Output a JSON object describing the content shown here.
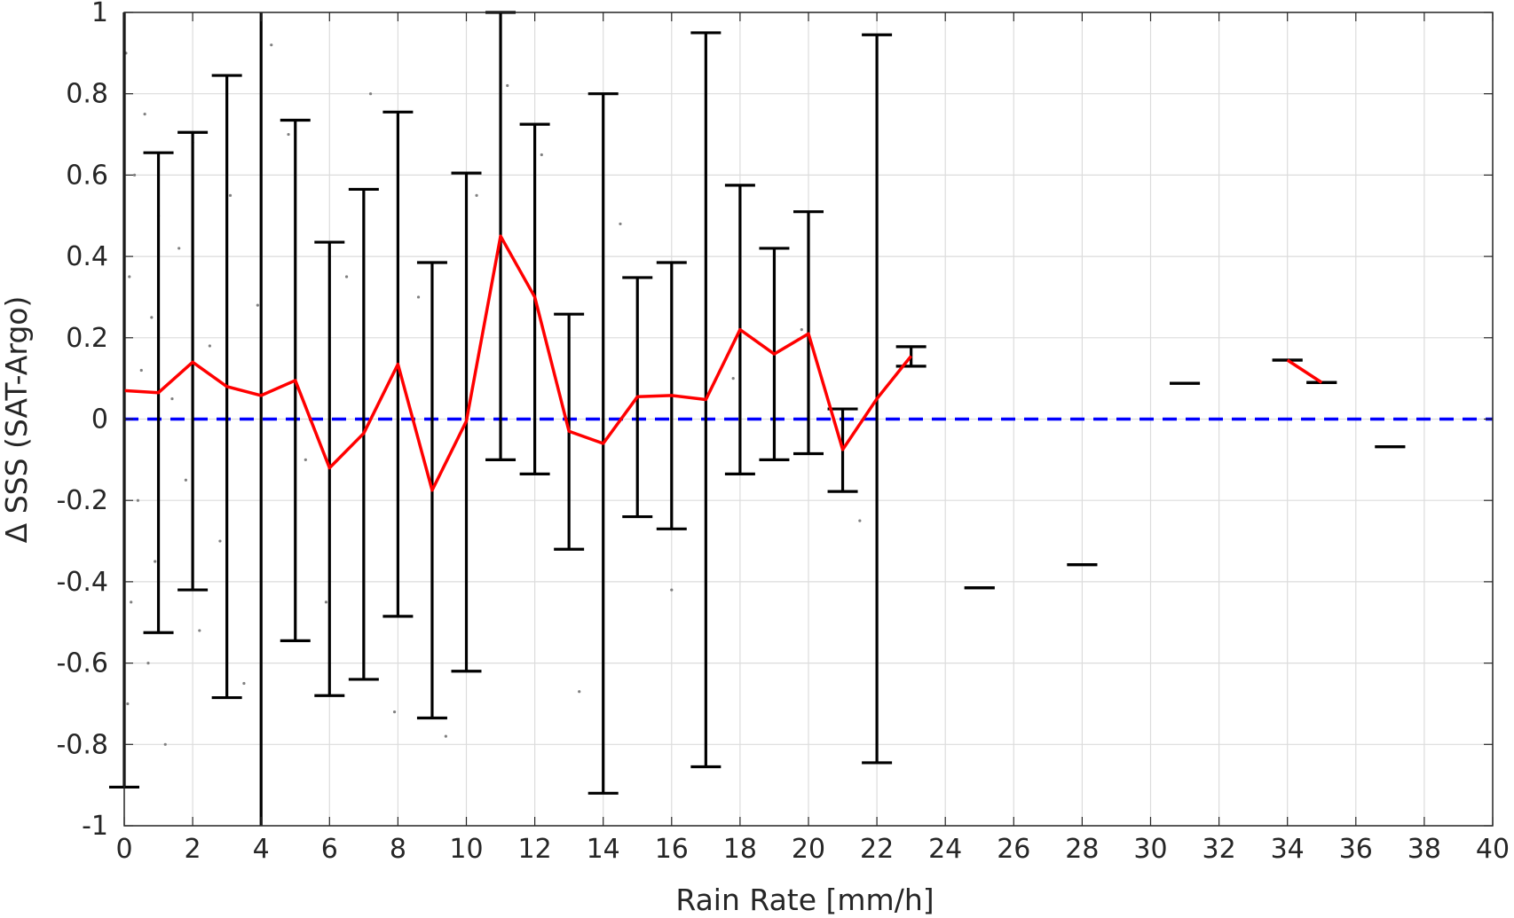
{
  "chart_data": {
    "type": "line",
    "title": "",
    "xlabel": "Rain Rate [mm/h]",
    "ylabel": "Δ SSS (SAT-Argo)",
    "xlim": [
      0,
      40
    ],
    "ylim": [
      -1,
      1
    ],
    "xticks": [
      0,
      2,
      4,
      6,
      8,
      10,
      12,
      14,
      16,
      18,
      20,
      22,
      24,
      26,
      28,
      30,
      32,
      34,
      36,
      38,
      40
    ],
    "yticks": [
      -1,
      -0.8,
      -0.6,
      -0.4,
      -0.2,
      0,
      0.2,
      0.4,
      0.6,
      0.8,
      1
    ],
    "xtick_labels": [
      "0",
      "2",
      "4",
      "6",
      "8",
      "10",
      "12",
      "14",
      "16",
      "18",
      "20",
      "22",
      "24",
      "26",
      "28",
      "30",
      "32",
      "34",
      "36",
      "38",
      "40"
    ],
    "ytick_labels": [
      "-1",
      "-0.8",
      "-0.6",
      "-0.4",
      "-0.2",
      "0",
      "0.2",
      "0.4",
      "0.6",
      "0.8",
      "1"
    ],
    "grid": true,
    "legend": "none",
    "series": [
      {
        "type": "line",
        "color": "#ff0000",
        "segments": [
          {
            "x": [
              0,
              1,
              2,
              3,
              4,
              5,
              6,
              7,
              8,
              9,
              10,
              11,
              12,
              13,
              14,
              15,
              16,
              17,
              18,
              19,
              20,
              21,
              22,
              23
            ],
            "y": [
              0.07,
              0.065,
              0.14,
              0.08,
              0.058,
              0.095,
              -0.12,
              -0.035,
              0.135,
              -0.175,
              -0.005,
              0.45,
              0.3,
              -0.03,
              -0.06,
              0.055,
              0.058,
              0.048,
              0.22,
              0.16,
              0.21,
              -0.075,
              0.05,
              0.155
            ]
          },
          {
            "x": [
              34,
              35
            ],
            "y": [
              0.145,
              0.09
            ]
          }
        ]
      },
      {
        "type": "errorbar",
        "color": "#000000",
        "x": [
          0,
          1,
          2,
          3,
          4,
          5,
          6,
          7,
          8,
          9,
          10,
          11,
          12,
          13,
          14,
          15,
          16,
          17,
          18,
          19,
          20,
          21,
          22,
          23,
          25,
          28,
          31,
          34,
          35,
          37
        ],
        "low": [
          -0.905,
          -0.525,
          -0.42,
          -0.685,
          -1,
          -0.545,
          -0.68,
          -0.64,
          -0.485,
          -0.735,
          -0.62,
          -0.1,
          -0.135,
          -0.32,
          -0.92,
          -0.24,
          -0.27,
          -0.855,
          -0.135,
          -0.1,
          -0.085,
          -0.178,
          -0.845,
          0.13,
          -0.415,
          -0.358,
          0.088,
          0.145,
          0.09,
          -0.068
        ],
        "high": [
          1,
          0.655,
          0.705,
          0.845,
          1,
          0.735,
          0.435,
          0.565,
          0.755,
          0.385,
          0.605,
          1,
          0.725,
          0.258,
          0.8,
          0.348,
          0.385,
          0.95,
          0.575,
          0.42,
          0.51,
          0.025,
          0.945,
          0.178,
          -0.415,
          -0.358,
          0.088,
          0.145,
          0.09,
          -0.068
        ]
      },
      {
        "type": "reference-line",
        "color": "#0000ff",
        "style": "dashed",
        "y": 0
      },
      {
        "type": "scatter",
        "color": "#808080",
        "description_points": "raw collocations",
        "x": [
          0.05,
          0.1,
          0.15,
          0.2,
          0.3,
          0.4,
          0.5,
          0.6,
          0.7,
          0.8,
          0.9,
          1.0,
          1.2,
          1.4,
          1.6,
          1.8,
          2.0,
          2.2,
          2.5,
          2.8,
          3.1,
          3.5,
          3.9,
          4.3,
          4.8,
          5.3,
          5.9,
          6.5,
          7.2,
          7.9,
          8.6,
          9.4,
          10.3,
          11.2,
          12.2,
          13.3,
          14.5,
          16.0,
          17.8,
          19.8,
          21.5
        ],
        "y": [
          0.9,
          -0.7,
          0.35,
          -0.45,
          0.6,
          -0.2,
          0.12,
          0.75,
          -0.6,
          0.25,
          -0.35,
          0.5,
          -0.8,
          0.05,
          0.42,
          -0.15,
          0.68,
          -0.52,
          0.18,
          -0.3,
          0.55,
          -0.65,
          0.28,
          0.92,
          0.7,
          -0.1,
          -0.45,
          0.35,
          0.8,
          -0.72,
          0.3,
          -0.78,
          0.55,
          0.82,
          0.65,
          -0.67,
          0.48,
          -0.42,
          0.1,
          0.22,
          -0.25
        ]
      }
    ]
  }
}
